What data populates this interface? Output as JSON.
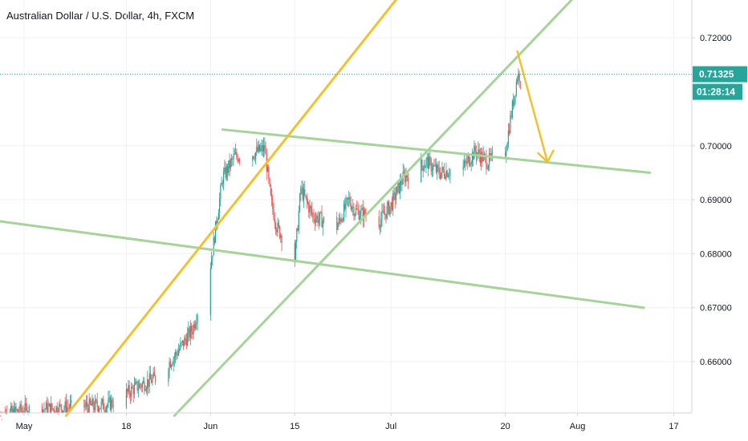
{
  "colors": {
    "up": "#26a69a",
    "down": "#ef5350",
    "yellow_line": "#f2c12e",
    "green_line": "#a5d39a",
    "price_badge": "#26a69a",
    "grid": "#eef1f5",
    "axis_line": "#d1d4dc",
    "price_line": "#26a69a"
  },
  "chart_data": {
    "type": "candlestick",
    "title": "Australian Dollar / U.S. Dollar, 4h, FXCM",
    "x_ticks": [
      "May",
      "18",
      "Jun",
      "15",
      "Jul",
      "20",
      "Aug",
      "17"
    ],
    "y_ticks": [
      "0.72000",
      "0.70000",
      "0.69000",
      "0.68000",
      "0.67000",
      "0.66000"
    ],
    "ylim": [
      0.6505,
      0.727
    ],
    "x_range": [
      "2020-04-27",
      "2020-08-20"
    ],
    "current_price": 0.71325,
    "countdown": "01:28:14",
    "grid": true,
    "daily_path": [
      [
        "2020-04-27",
        0.65
      ],
      [
        "2020-05-01",
        0.651
      ],
      [
        "2020-05-08",
        0.6515
      ],
      [
        "2020-05-15",
        0.652
      ],
      [
        "2020-05-20",
        0.6555
      ],
      [
        "2020-05-23",
        0.657
      ],
      [
        "2020-05-26",
        0.661
      ],
      [
        "2020-05-29",
        0.666
      ],
      [
        "2020-06-01",
        0.678
      ],
      [
        "2020-06-02",
        0.686
      ],
      [
        "2020-06-03",
        0.694
      ],
      [
        "2020-06-05",
        0.698
      ],
      [
        "2020-06-08",
        0.6985
      ],
      [
        "2020-06-10",
        0.6995
      ],
      [
        "2020-06-11",
        0.69
      ],
      [
        "2020-06-12",
        0.685
      ],
      [
        "2020-06-15",
        0.679
      ],
      [
        "2020-06-16",
        0.692
      ],
      [
        "2020-06-18",
        0.687
      ],
      [
        "2020-06-22",
        0.685
      ],
      [
        "2020-06-24",
        0.69
      ],
      [
        "2020-06-25",
        0.688
      ],
      [
        "2020-06-29",
        0.686
      ],
      [
        "2020-07-01",
        0.689
      ],
      [
        "2020-07-03",
        0.694
      ],
      [
        "2020-07-07",
        0.697
      ],
      [
        "2020-07-09",
        0.695
      ],
      [
        "2020-07-13",
        0.696
      ],
      [
        "2020-07-15",
        0.699
      ],
      [
        "2020-07-17",
        0.697
      ],
      [
        "2020-07-20",
        0.699
      ],
      [
        "2020-07-21",
        0.706
      ],
      [
        "2020-07-22",
        0.713
      ]
    ],
    "drawings": {
      "yellow_channel_line": {
        "from": [
          "2020-05-08",
          0.65
        ],
        "to": [
          "2020-07-05",
          0.7315
        ]
      },
      "green_rising_line": {
        "from": [
          "2020-05-26",
          0.65
        ],
        "to": [
          "2020-07-31",
          0.727
        ]
      },
      "green_upper_descending": {
        "from": [
          "2020-06-03",
          0.703
        ],
        "to": [
          "2020-08-13",
          0.695
        ]
      },
      "green_lower_descending": {
        "from": [
          "2020-04-27",
          0.686
        ],
        "to": [
          "2020-08-12",
          0.67
        ]
      },
      "yellow_arrow": {
        "from": [
          "2020-07-22",
          0.7175
        ],
        "to": [
          "2020-07-27",
          0.697
        ]
      }
    }
  }
}
